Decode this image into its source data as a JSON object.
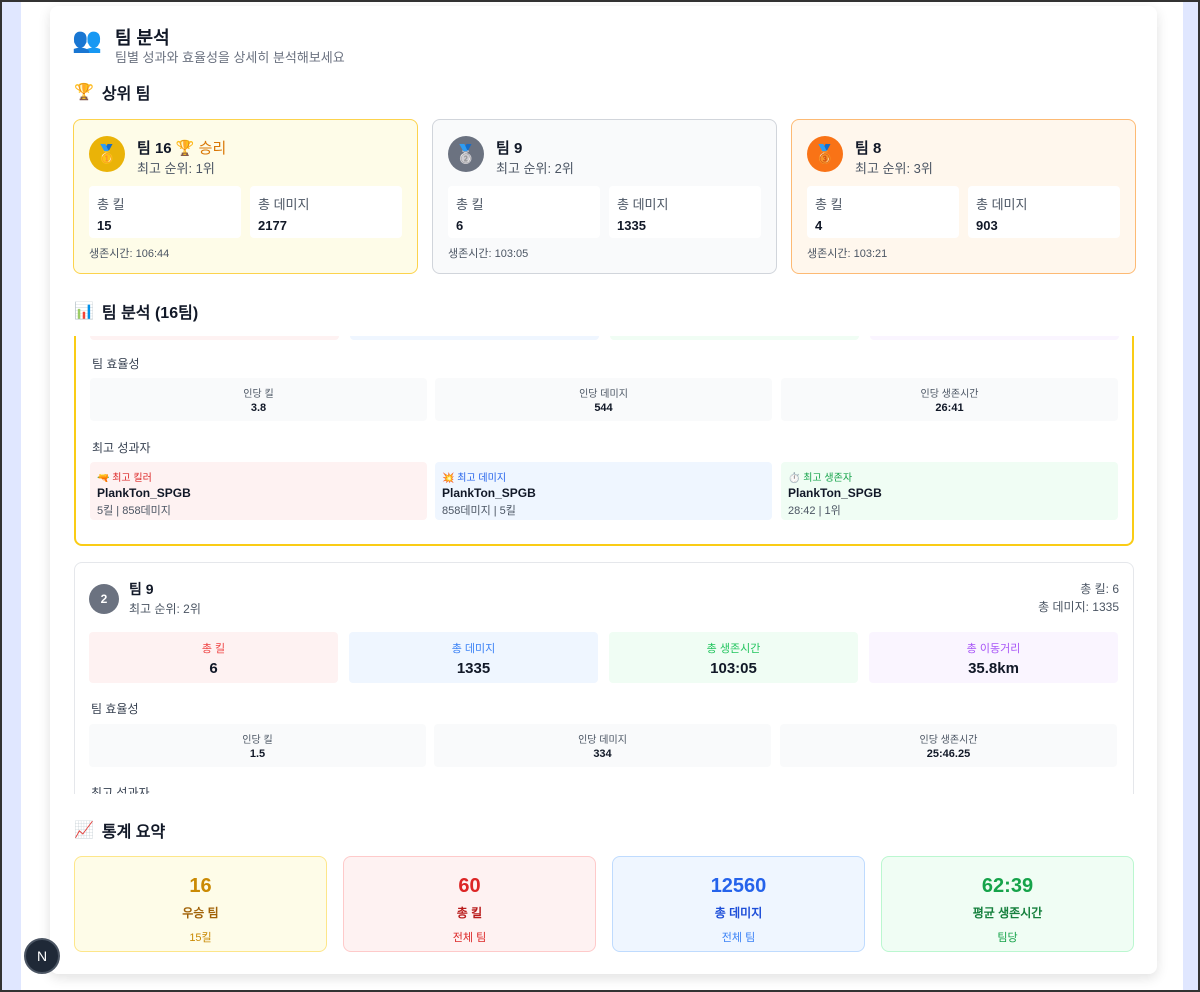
{
  "header": {
    "icon": "busts-icon",
    "title": "팀 분석",
    "subtitle": "팀별 성과와 효율성을 상세히 분석해보세요"
  },
  "top_section": {
    "title": "상위 팀",
    "icon": "trophy-icon"
  },
  "top_teams": [
    {
      "name": "팀 16",
      "win_label": "🏆 승리",
      "rank": "최고 순위: 1위",
      "kills_label": "총 킬",
      "kills": "15",
      "damage_label": "총 데미지",
      "damage": "2177",
      "survival": "생존시간: 106:44",
      "medal": "🥇"
    },
    {
      "name": "팀 9",
      "rank": "최고 순위: 2위",
      "kills_label": "총 킬",
      "kills": "6",
      "damage_label": "총 데미지",
      "damage": "1335",
      "survival": "생존시간: 103:05",
      "medal": "🥈"
    },
    {
      "name": "팀 8",
      "rank": "최고 순위: 3위",
      "kills_label": "총 킬",
      "kills": "4",
      "damage_label": "총 데미지",
      "damage": "903",
      "survival": "생존시간: 103:21",
      "medal": "🥉"
    }
  ],
  "analysis_section": {
    "title": "팀 분석 (16팀)",
    "icon": "bar-chart-icon"
  },
  "team16_detail": {
    "efficiency_label": "팀 효율성",
    "efficiency": [
      {
        "label": "인당 킬",
        "value": "3.8"
      },
      {
        "label": "인당 데미지",
        "value": "544"
      },
      {
        "label": "인당 생존시간",
        "value": "26:41"
      }
    ],
    "performers_label": "최고 성과자",
    "performers": [
      {
        "icon": "🔫",
        "label": "최고 킬러",
        "name": "PlankTon_SPGB",
        "detail": "5킬 | 858데미지"
      },
      {
        "icon": "💥",
        "label": "최고 데미지",
        "name": "PlankTon_SPGB",
        "detail": "858데미지 | 5킬"
      },
      {
        "icon": "⏱️",
        "label": "최고 생존자",
        "name": "PlankTon_SPGB",
        "detail": "28:42 | 1위"
      }
    ]
  },
  "team9_detail": {
    "rank_num": "2",
    "name": "팀 9",
    "rank": "최고 순위: 2위",
    "total_kills": "총 킬: 6",
    "total_damage": "총 데미지: 1335",
    "stats": [
      {
        "label": "총 킬",
        "value": "6"
      },
      {
        "label": "총 데미지",
        "value": "1335"
      },
      {
        "label": "총 생존시간",
        "value": "103:05"
      },
      {
        "label": "총 이동거리",
        "value": "35.8km"
      }
    ],
    "efficiency_label": "팀 효율성",
    "efficiency": [
      {
        "label": "인당 킬",
        "value": "1.5"
      },
      {
        "label": "인당 데미지",
        "value": "334"
      },
      {
        "label": "인당 생존시간",
        "value": "25:46.25"
      }
    ],
    "performers_label": "최고 성과자"
  },
  "summary_section": {
    "title": "통계 요약",
    "icon": "chart-increasing-icon"
  },
  "summary": [
    {
      "value": "16",
      "label": "우승 팀",
      "sub": "15킬"
    },
    {
      "value": "60",
      "label": "총 킬",
      "sub": "전체 팀"
    },
    {
      "value": "12560",
      "label": "총 데미지",
      "sub": "전체 팀"
    },
    {
      "value": "62:39",
      "label": "평균 생존시간",
      "sub": "팀당"
    }
  ],
  "dev_button": "N"
}
